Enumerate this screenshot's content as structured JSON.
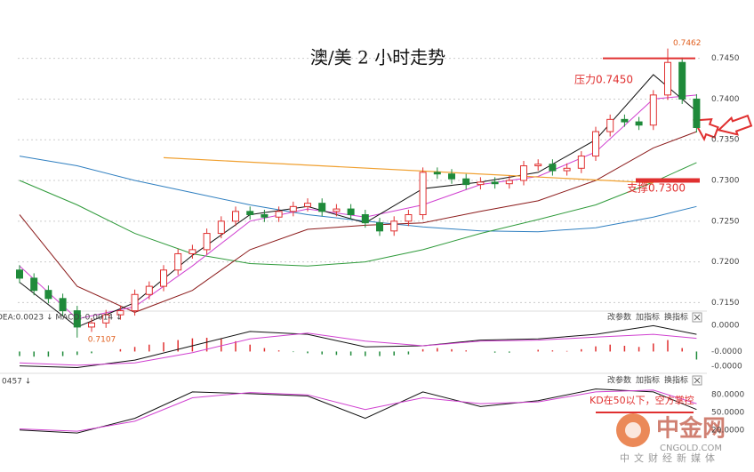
{
  "header": {
    "title": "澳/美 2 小时走势"
  },
  "chart_data": [
    {
      "type": "candlestick",
      "open": [
        0.719,
        0.718,
        0.7165,
        0.7155,
        0.714,
        0.712,
        0.7125,
        0.7135,
        0.714,
        0.716,
        0.717,
        0.719,
        0.721,
        0.7215,
        0.7235,
        0.725,
        0.7262,
        0.7258,
        0.7255,
        0.7262,
        0.7268,
        0.7272,
        0.7262,
        0.7265,
        0.7258,
        0.7248,
        0.7238,
        0.725,
        0.7258,
        0.731,
        0.7308,
        0.7302,
        0.7295,
        0.7298,
        0.7296,
        0.73,
        0.7318,
        0.732,
        0.7312,
        0.7315,
        0.733,
        0.736,
        0.7375,
        0.7372,
        0.7368,
        0.7405,
        0.7445,
        0.74
      ],
      "high": [
        0.7196,
        0.7186,
        0.7171,
        0.7161,
        0.7146,
        0.7131,
        0.7141,
        0.7146,
        0.7166,
        0.7176,
        0.7196,
        0.7216,
        0.7221,
        0.7241,
        0.7256,
        0.7268,
        0.7268,
        0.7264,
        0.7268,
        0.7274,
        0.7278,
        0.7278,
        0.7271,
        0.7271,
        0.7264,
        0.7254,
        0.7256,
        0.7264,
        0.7316,
        0.7316,
        0.7314,
        0.7308,
        0.7304,
        0.7304,
        0.7306,
        0.7324,
        0.7326,
        0.7326,
        0.7321,
        0.7336,
        0.7366,
        0.7381,
        0.7381,
        0.7378,
        0.7411,
        0.7462,
        0.7451,
        0.7406
      ],
      "low": [
        0.7174,
        0.7159,
        0.7149,
        0.7134,
        0.7107,
        0.7114,
        0.7119,
        0.7129,
        0.7134,
        0.7154,
        0.7164,
        0.7184,
        0.7204,
        0.7209,
        0.7229,
        0.7244,
        0.7252,
        0.7249,
        0.7249,
        0.7256,
        0.7262,
        0.7256,
        0.7256,
        0.7252,
        0.7242,
        0.7232,
        0.7232,
        0.7244,
        0.7252,
        0.7302,
        0.7296,
        0.7289,
        0.7289,
        0.729,
        0.729,
        0.7294,
        0.7312,
        0.7306,
        0.7306,
        0.7309,
        0.7324,
        0.7354,
        0.7366,
        0.7362,
        0.7362,
        0.7399,
        0.7394,
        0.7359
      ],
      "close": [
        0.718,
        0.7165,
        0.7155,
        0.714,
        0.712,
        0.7125,
        0.7135,
        0.714,
        0.716,
        0.717,
        0.719,
        0.721,
        0.7215,
        0.7235,
        0.725,
        0.7262,
        0.7258,
        0.7255,
        0.7262,
        0.7268,
        0.7272,
        0.7262,
        0.7265,
        0.7258,
        0.7248,
        0.7238,
        0.725,
        0.7258,
        0.731,
        0.7308,
        0.7302,
        0.7295,
        0.7298,
        0.7296,
        0.73,
        0.7318,
        0.732,
        0.7312,
        0.7315,
        0.733,
        0.736,
        0.7375,
        0.7372,
        0.7368,
        0.7405,
        0.7445,
        0.74,
        0.7365
      ],
      "up_color": "#e03030",
      "down_color": "#1f8a3a",
      "series": [
        {
          "color": "#2f7fc0",
          "x": [
            0,
            4,
            8,
            12,
            16,
            20,
            24,
            28,
            32,
            36,
            40,
            44,
            47
          ],
          "values": [
            0.733,
            0.7318,
            0.73,
            0.7285,
            0.727,
            0.7258,
            0.725,
            0.7243,
            0.7238,
            0.7237,
            0.7242,
            0.7255,
            0.7268
          ]
        },
        {
          "color": "#2e9a3a",
          "x": [
            0,
            4,
            8,
            12,
            16,
            20,
            24,
            28,
            32,
            36,
            40,
            44,
            47
          ],
          "values": [
            0.73,
            0.727,
            0.7235,
            0.721,
            0.7198,
            0.7195,
            0.72,
            0.7215,
            0.7235,
            0.7252,
            0.727,
            0.7298,
            0.7322
          ]
        },
        {
          "color": "#8b1a1a",
          "x": [
            0,
            4,
            8,
            12,
            16,
            20,
            24,
            28,
            32,
            36,
            40,
            44,
            47
          ],
          "values": [
            0.7258,
            0.717,
            0.7138,
            0.7165,
            0.7215,
            0.724,
            0.7245,
            0.7248,
            0.7262,
            0.7275,
            0.73,
            0.734,
            0.736
          ]
        },
        {
          "color": "#d040d0",
          "x": [
            0,
            4,
            8,
            12,
            16,
            20,
            24,
            28,
            32,
            36,
            40,
            44,
            47
          ],
          "values": [
            0.7195,
            0.713,
            0.7145,
            0.7195,
            0.725,
            0.7265,
            0.7255,
            0.727,
            0.7295,
            0.7305,
            0.7335,
            0.74,
            0.7405
          ]
        },
        {
          "color": "#111111",
          "x": [
            0,
            4,
            8,
            12,
            16,
            20,
            24,
            28,
            32,
            36,
            40,
            44,
            47
          ],
          "values": [
            0.7175,
            0.712,
            0.715,
            0.7208,
            0.7258,
            0.7268,
            0.7248,
            0.729,
            0.7298,
            0.731,
            0.735,
            0.743,
            0.7385
          ]
        }
      ],
      "trend_line": {
        "color": "#f0a030",
        "x": [
          10,
          44
        ],
        "values": [
          0.7328,
          0.7297
        ]
      },
      "levels": [
        {
          "label": "压力0.7450",
          "value": 0.745,
          "color": "#e03030"
        },
        {
          "label": "支撑0.7300",
          "value": 0.73,
          "color": "#e03030"
        }
      ],
      "ylim": [
        0.7145,
        0.7478
      ],
      "yticks": [
        {
          "value": 0.745,
          "label": "0.7450"
        },
        {
          "value": 0.74,
          "label": "0.7400"
        },
        {
          "value": 0.735,
          "label": "0.7350"
        },
        {
          "value": 0.73,
          "label": "0.7300"
        },
        {
          "value": 0.725,
          "label": "0.7250"
        },
        {
          "value": 0.72,
          "label": "0.7200"
        },
        {
          "value": 0.715,
          "label": "0.7150"
        }
      ],
      "grid": true
    },
    {
      "type": "macd",
      "legend_text": "DEA:0.0023 ↓ MACD:-0.0014 ↓",
      "toolbar": [
        "改参数",
        "加指标",
        "换指标"
      ],
      "histogram": [
        -0.0008,
        -0.0009,
        -0.0009,
        -0.0008,
        -0.0006,
        -0.0003,
        0.0,
        0.0004,
        0.0008,
        0.0012,
        0.0016,
        0.002,
        0.0023,
        0.0024,
        0.0022,
        0.0018,
        0.0012,
        0.0006,
        0.0002,
        -0.0001,
        -0.0003,
        -0.0005,
        -0.0006,
        -0.0007,
        -0.0008,
        -0.0008,
        -0.0007,
        -0.0005,
        0.0004,
        0.0006,
        0.0004,
        0.0002,
        0.0,
        -0.0002,
        -0.0002,
        0.0,
        0.0003,
        0.0002,
        0.0001,
        0.0004,
        0.0009,
        0.0012,
        0.001,
        0.0008,
        0.0014,
        0.002,
        0.0006,
        -0.0014
      ],
      "up_color": "#e03030",
      "down_color": "#1f8a3a",
      "series": [
        {
          "color": "#111111",
          "x": [
            0,
            4,
            8,
            12,
            16,
            20,
            24,
            28,
            32,
            36,
            40,
            44,
            47
          ],
          "values": [
            -0.0025,
            -0.0028,
            -0.0015,
            0.001,
            0.0035,
            0.003,
            0.0008,
            0.001,
            0.002,
            0.0022,
            0.003,
            0.0045,
            0.003
          ]
        },
        {
          "color": "#d040d0",
          "x": [
            0,
            4,
            8,
            12,
            16,
            20,
            24,
            28,
            32,
            36,
            40,
            44,
            47
          ],
          "values": [
            -0.002,
            -0.0024,
            -0.002,
            -0.0002,
            0.0022,
            0.0032,
            0.0018,
            0.001,
            0.0018,
            0.002,
            0.0025,
            0.003,
            0.0023
          ]
        }
      ],
      "axis_labels": [
        "0.0000",
        "-0.0000",
        "-0.0000"
      ],
      "ylim": [
        -0.0035,
        0.0055
      ]
    },
    {
      "type": "line",
      "legend_text": "0457 ↓",
      "toolbar": [
        "改参数",
        "加指标",
        "换指标"
      ],
      "series": [
        {
          "color": "#111111",
          "x": [
            0,
            4,
            8,
            12,
            16,
            20,
            24,
            28,
            32,
            36,
            40,
            44,
            47
          ],
          "values": [
            20,
            15,
            40,
            85,
            82,
            78,
            40,
            85,
            60,
            70,
            90,
            85,
            55
          ]
        },
        {
          "color": "#d040d0",
          "x": [
            0,
            4,
            8,
            12,
            16,
            20,
            24,
            28,
            32,
            36,
            40,
            44,
            47
          ],
          "values": [
            22,
            18,
            35,
            75,
            84,
            80,
            55,
            75,
            65,
            68,
            85,
            88,
            65
          ]
        }
      ],
      "annotation": "KD在50以下，空方掌控",
      "level": 50,
      "ylim": [
        0,
        100
      ],
      "yticks": [
        {
          "value": 80,
          "label": "80.0000"
        },
        {
          "value": 50,
          "label": "50.0000"
        },
        {
          "value": 20,
          "label": "20.0000"
        }
      ]
    }
  ],
  "watermark": {
    "brand": "中金网",
    "domain": "CNGOLD.COM",
    "slogan": "中文财经新媒体"
  }
}
